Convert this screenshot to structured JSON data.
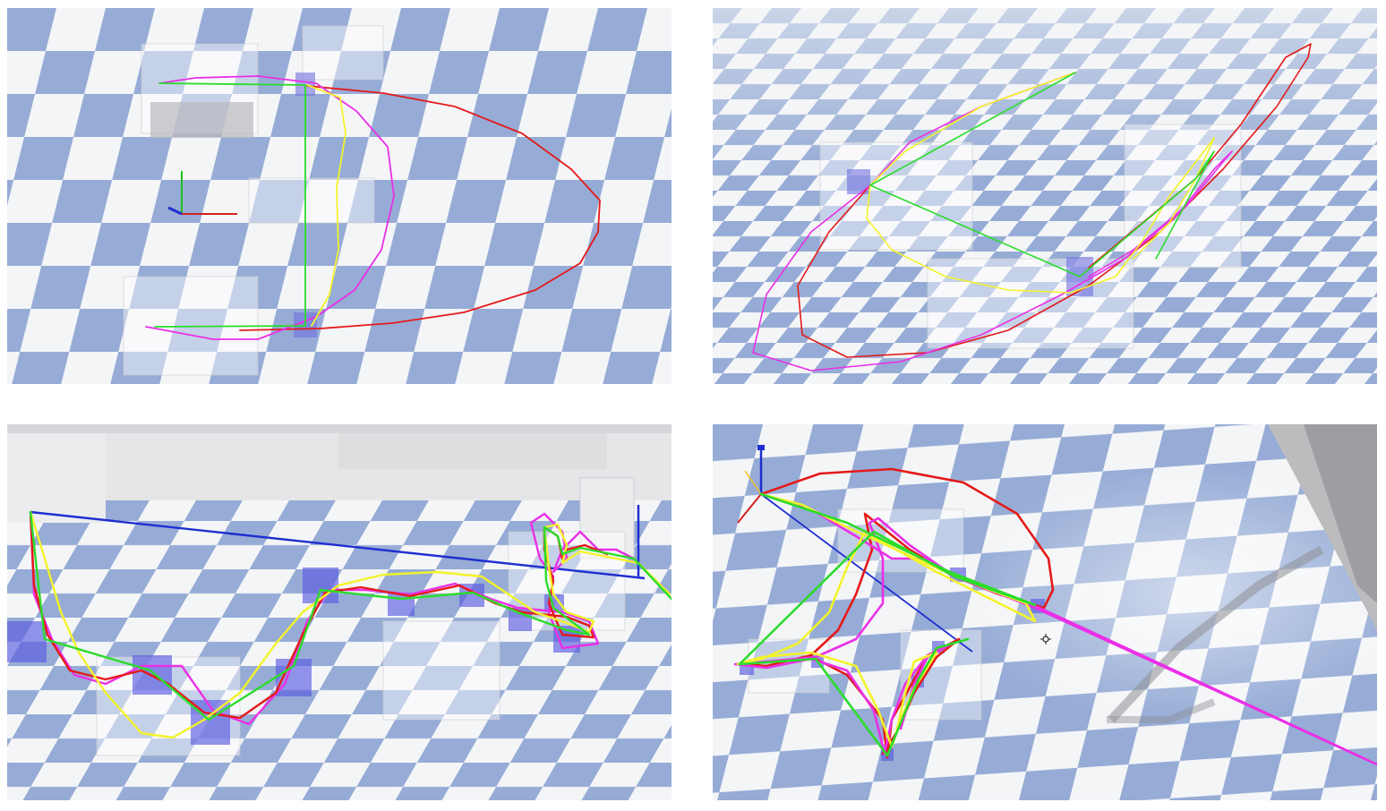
{
  "panels": [
    {
      "id": "top-left"
    },
    {
      "id": "top-right"
    },
    {
      "id": "bottom-left"
    },
    {
      "id": "bottom-right"
    }
  ],
  "colors": {
    "floor_tile_dark": "#96acd6",
    "floor_tile_light": "#f4f5f7",
    "waypoint_box": "#6f6fe0",
    "obstacle": "#dcdcdc",
    "trajectory_red": "#e41a1a",
    "trajectory_magenta": "#ea2fe6",
    "trajectory_yellow": "#f3f32a",
    "trajectory_green": "#2bdc2b",
    "trajectory_blue": "#1f2fcf",
    "axis_red": "#d42020",
    "axis_green": "#1fbf1f",
    "axis_blue": "#1f2fcf"
  },
  "icons": [
    "move-cursor-icon"
  ]
}
